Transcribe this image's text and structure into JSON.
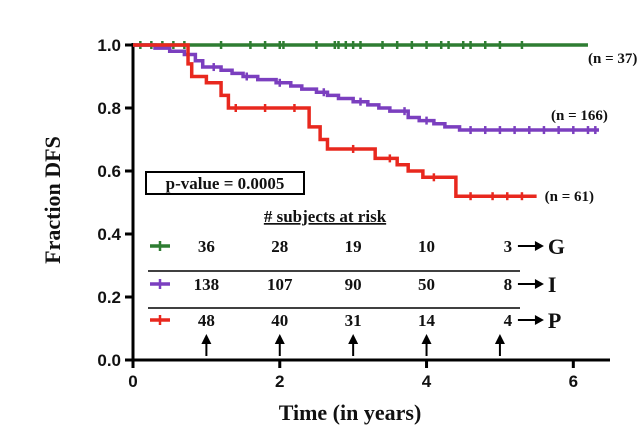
{
  "chart_data": {
    "type": "line",
    "xlabel": "Time (in years)",
    "ylabel": "Fraction DFS",
    "xlim": [
      0,
      6.5
    ],
    "ylim": [
      0,
      1.0
    ],
    "x_ticks": [
      0,
      2,
      4,
      6
    ],
    "y_ticks": [
      0.0,
      0.2,
      0.4,
      0.6,
      0.8,
      1.0
    ],
    "x_tick_labels": [
      "0",
      "2",
      "4",
      "6"
    ],
    "y_tick_labels": [
      "0.0",
      "0.2",
      "0.4",
      "0.6",
      "0.8",
      "1.0"
    ],
    "grid": false,
    "series": [
      {
        "name": "G",
        "n_label": "(n = 37)",
        "color": "#2e7d32",
        "steps": [
          [
            0,
            1.0
          ],
          [
            6.2,
            1.0
          ]
        ],
        "censor_x": [
          0.1,
          0.25,
          0.4,
          0.55,
          0.7,
          1.2,
          1.6,
          1.8,
          2.0,
          2.05,
          2.5,
          2.75,
          2.8,
          2.9,
          3.0,
          3.1,
          3.4,
          3.6,
          3.8,
          4.0,
          4.2,
          4.3,
          4.5,
          4.6,
          4.8,
          5.0,
          5.3
        ]
      },
      {
        "name": "I",
        "n_label": "(n = 166)",
        "color": "#7b3fbf",
        "steps": [
          [
            0,
            1.0
          ],
          [
            0.3,
            0.99
          ],
          [
            0.5,
            0.98
          ],
          [
            0.7,
            0.97
          ],
          [
            0.85,
            0.95
          ],
          [
            0.95,
            0.93
          ],
          [
            1.2,
            0.92
          ],
          [
            1.35,
            0.91
          ],
          [
            1.5,
            0.9
          ],
          [
            1.7,
            0.89
          ],
          [
            1.95,
            0.88
          ],
          [
            2.15,
            0.87
          ],
          [
            2.3,
            0.86
          ],
          [
            2.5,
            0.85
          ],
          [
            2.65,
            0.84
          ],
          [
            2.8,
            0.83
          ],
          [
            3.0,
            0.82
          ],
          [
            3.2,
            0.81
          ],
          [
            3.35,
            0.8
          ],
          [
            3.5,
            0.79
          ],
          [
            3.75,
            0.77
          ],
          [
            3.9,
            0.76
          ],
          [
            4.1,
            0.75
          ],
          [
            4.25,
            0.74
          ],
          [
            4.45,
            0.73
          ],
          [
            6.35,
            0.73
          ]
        ],
        "censor_x": [
          1.1,
          1.55,
          2.0,
          2.6,
          3.1,
          3.7,
          4.0,
          4.6,
          4.8,
          5.0,
          5.2,
          5.4,
          5.6,
          5.8,
          6.0,
          6.2,
          6.3
        ]
      },
      {
        "name": "P",
        "n_label": "(n = 61)",
        "color": "#e8281e",
        "steps": [
          [
            0,
            1.0
          ],
          [
            0.75,
            0.94
          ],
          [
            0.8,
            0.9
          ],
          [
            1.0,
            0.88
          ],
          [
            1.2,
            0.84
          ],
          [
            1.3,
            0.8
          ],
          [
            2.4,
            0.74
          ],
          [
            2.55,
            0.7
          ],
          [
            2.65,
            0.67
          ],
          [
            3.3,
            0.64
          ],
          [
            3.6,
            0.62
          ],
          [
            3.75,
            0.6
          ],
          [
            3.95,
            0.58
          ],
          [
            4.4,
            0.52
          ],
          [
            5.5,
            0.52
          ]
        ],
        "censor_x": [
          1.4,
          1.8,
          2.2,
          3.0,
          3.5,
          4.1,
          4.6,
          4.9,
          5.1,
          5.3
        ]
      }
    ],
    "annotations": {
      "p_value": "p-value = 0.0005",
      "risk_header": "# subjects at risk",
      "risk_times": [
        1,
        2,
        3,
        4,
        5
      ],
      "risk_rows": [
        {
          "group": "G",
          "color": "#2e7d32",
          "values": [
            "36",
            "28",
            "19",
            "10",
            "3"
          ]
        },
        {
          "group": "I",
          "color": "#7b3fbf",
          "values": [
            "138",
            "107",
            "90",
            "50",
            "8"
          ]
        },
        {
          "group": "P",
          "color": "#e8281e",
          "values": [
            "48",
            "40",
            "31",
            "14",
            "4"
          ]
        }
      ]
    }
  }
}
